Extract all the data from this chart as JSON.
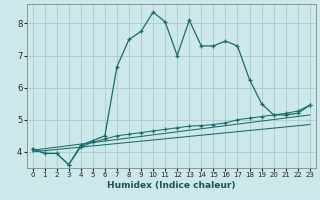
{
  "xlabel": "Humidex (Indice chaleur)",
  "bg_color": "#cce8ea",
  "grid_color": "#aacccc",
  "line_color": "#1a6b6b",
  "xlim": [
    -0.5,
    23.5
  ],
  "ylim": [
    3.5,
    8.6
  ],
  "xticks": [
    0,
    1,
    2,
    3,
    4,
    5,
    6,
    7,
    8,
    9,
    10,
    11,
    12,
    13,
    14,
    15,
    16,
    17,
    18,
    19,
    20,
    21,
    22,
    23
  ],
  "yticks": [
    4,
    5,
    6,
    7,
    8
  ],
  "main_x": [
    0,
    1,
    2,
    3,
    4,
    5,
    6,
    7,
    8,
    9,
    10,
    11,
    12,
    13,
    14,
    15,
    16,
    17,
    18,
    19,
    20,
    21,
    22,
    23
  ],
  "main_y": [
    4.1,
    3.95,
    3.95,
    3.6,
    4.2,
    4.35,
    4.5,
    6.65,
    7.5,
    7.75,
    8.35,
    8.05,
    7.0,
    8.1,
    7.3,
    7.3,
    7.45,
    7.3,
    6.25,
    5.5,
    5.15,
    5.15,
    5.2,
    5.45
  ],
  "slow_x": [
    0,
    1,
    2,
    3,
    4,
    5,
    6,
    7,
    8,
    9,
    10,
    11,
    12,
    13,
    14,
    15,
    16,
    17,
    18,
    19,
    20,
    21,
    22,
    23
  ],
  "slow_y": [
    4.1,
    3.95,
    3.95,
    3.6,
    4.15,
    4.3,
    4.4,
    4.5,
    4.55,
    4.6,
    4.65,
    4.7,
    4.75,
    4.8,
    4.82,
    4.85,
    4.9,
    5.0,
    5.05,
    5.1,
    5.15,
    5.2,
    5.27,
    5.45
  ],
  "line3_x": [
    0,
    23
  ],
  "line3_y": [
    4.05,
    5.15
  ],
  "line4_x": [
    0,
    23
  ],
  "line4_y": [
    4.0,
    4.85
  ]
}
